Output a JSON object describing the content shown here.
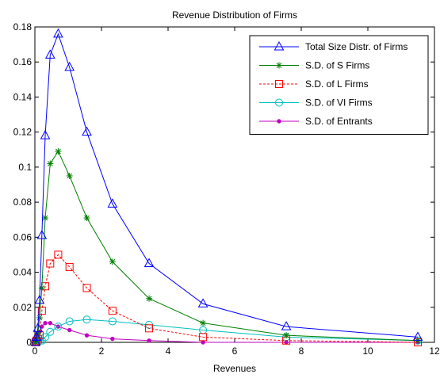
{
  "chart_data": {
    "type": "line",
    "title": "Revenue Distribution of Firms",
    "xlabel": "Revenues",
    "ylabel": "",
    "xlim": [
      0,
      12
    ],
    "ylim": [
      0,
      0.18
    ],
    "xticks": [
      0,
      2,
      4,
      6,
      8,
      10,
      12
    ],
    "yticks": [
      0,
      0.02,
      0.04,
      0.06,
      0.08,
      0.1,
      0.12,
      0.14,
      0.16,
      0.18
    ],
    "xtick_labels": [
      "0",
      "2",
      "4",
      "6",
      "8",
      "10",
      "12"
    ],
    "ytick_labels": [
      "0",
      "0.02",
      "0.04",
      "0.06",
      "0.08",
      "0.1",
      "0.12",
      "0.14",
      "0.16",
      "0.18"
    ],
    "grid": false,
    "legend_position": "top-right",
    "series": [
      {
        "name": "Total Size Distr. of Firms",
        "color": "#0000ff",
        "line_style": "solid",
        "marker": "triangle",
        "x": [
          0.02,
          0.05,
          0.09,
          0.14,
          0.21,
          0.31,
          0.46,
          0.7,
          1.04,
          1.56,
          2.33,
          3.43,
          5.05,
          7.55,
          11.5
        ],
        "y": [
          0.0,
          0.003,
          0.008,
          0.024,
          0.061,
          0.118,
          0.164,
          0.176,
          0.157,
          0.12,
          0.079,
          0.045,
          0.022,
          0.009,
          0.003
        ]
      },
      {
        "name": "S.D. of S Firms",
        "color": "#008000",
        "line_style": "solid",
        "marker": "star",
        "x": [
          0.02,
          0.05,
          0.09,
          0.14,
          0.21,
          0.31,
          0.46,
          0.7,
          1.04,
          1.56,
          2.33,
          3.43,
          5.05,
          7.55,
          11.5
        ],
        "y": [
          0.0,
          0.002,
          0.005,
          0.014,
          0.031,
          0.071,
          0.102,
          0.109,
          0.095,
          0.071,
          0.046,
          0.025,
          0.011,
          0.004,
          0.001
        ]
      },
      {
        "name": "S.D. of L Firms",
        "color": "#ff0000",
        "line_style": "dashed",
        "marker": "square",
        "x": [
          0.02,
          0.05,
          0.09,
          0.14,
          0.21,
          0.31,
          0.46,
          0.7,
          1.04,
          1.56,
          2.33,
          3.43,
          5.05,
          7.55,
          11.5
        ],
        "y": [
          0.0,
          0.001,
          0.002,
          0.004,
          0.018,
          0.032,
          0.045,
          0.05,
          0.043,
          0.031,
          0.018,
          0.008,
          0.003,
          0.001,
          0.0
        ]
      },
      {
        "name": "S.D. of VI Firms",
        "color": "#00bfbf",
        "line_style": "solid",
        "marker": "circle",
        "x": [
          0.02,
          0.05,
          0.09,
          0.14,
          0.21,
          0.31,
          0.46,
          0.7,
          1.04,
          1.56,
          2.33,
          3.43,
          5.05,
          7.55,
          11.5
        ],
        "y": [
          0.0,
          0.0,
          0.0,
          0.001,
          0.001,
          0.003,
          0.006,
          0.009,
          0.012,
          0.013,
          0.012,
          0.01,
          0.007,
          0.003,
          0.001
        ]
      },
      {
        "name": "S.D. of Entrants",
        "color": "#bf00bf",
        "line_style": "solid",
        "marker": "dot",
        "x": [
          0.02,
          0.05,
          0.09,
          0.14,
          0.21,
          0.31,
          0.46,
          0.7,
          1.04,
          1.56,
          2.33,
          3.43,
          5.05,
          7.55,
          11.5
        ],
        "y": [
          0.0,
          0.002,
          0.004,
          0.006,
          0.009,
          0.011,
          0.011,
          0.009,
          0.007,
          0.004,
          0.002,
          0.001,
          0.0,
          0.0,
          0.0
        ]
      }
    ]
  }
}
